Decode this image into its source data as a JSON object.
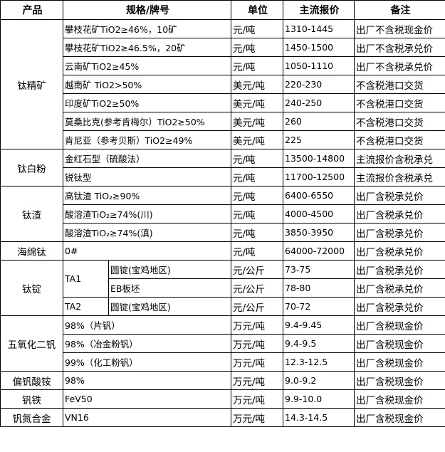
{
  "headers": [
    "产品",
    "规格/牌号",
    "单位",
    "主流报价",
    "备注"
  ],
  "groups": [
    {
      "product": "钛精矿",
      "rows": [
        {
          "spec": "攀枝花矿TiO2≥46%，10矿",
          "unit": "元/吨",
          "price": "1310-1445",
          "note": "出厂不含税现金价"
        },
        {
          "spec": "攀枝花矿TiO2≥46.5%，20矿",
          "unit": "元/吨",
          "price": "1450-1500",
          "note": "出厂不含税承兑价"
        },
        {
          "spec": "云南矿TiO2≥45%",
          "unit": "元/吨",
          "price": "1050-1110",
          "note": "出厂不含税承兑价"
        },
        {
          "spec": "越南矿 TiO2>50%",
          "unit": "美元/吨",
          "price": "220-230",
          "note": "不含税港口交货"
        },
        {
          "spec": "印度矿TiO2≥50%",
          "unit": "美元/吨",
          "price": "240-250",
          "note": "不含税港口交货"
        },
        {
          "spec": "莫桑比克(参考肯梅尔）TiO2≥50%",
          "unit": "美元/吨",
          "price": "260",
          "note": "不含税港口交货"
        },
        {
          "spec": "肯尼亚（参考贝斯）TiO2≥49%",
          "unit": "美元/吨",
          "price": "225",
          "note": "不含税港口交货"
        }
      ]
    },
    {
      "product": "钛白粉",
      "rows": [
        {
          "spec": "金红石型（硫酸法）",
          "unit": "元/吨",
          "price": "13500-14800",
          "note": "主流报价含税承兑"
        },
        {
          "spec": "锐钛型",
          "unit": "元/吨",
          "price": "11700-12500",
          "note": "主流报价含税承兑"
        }
      ]
    },
    {
      "product": "钛渣",
      "rows": [
        {
          "spec": "高钛渣 TiO₂≥90%",
          "unit": "元/吨",
          "price": "6400-6550",
          "note": "出厂含税承兑价"
        },
        {
          "spec": "酸溶渣TiO₂≥74%(川)",
          "unit": "元/吨",
          "price": "4000-4500",
          "note": "出厂含税承兑价"
        },
        {
          "spec": "酸溶渣TiO₂≥74%(滇)",
          "unit": "元/吨",
          "price": "3850-3950",
          "note": "出厂含税承兑价"
        }
      ]
    },
    {
      "product": "海绵钛",
      "rows": [
        {
          "spec": "0#",
          "unit": "元/吨",
          "price": "64000-72000",
          "note": "出厂含税承兑价"
        }
      ]
    },
    {
      "product": "钛锭",
      "rows": [
        {
          "grade": "TA1",
          "grade_span": 2,
          "spec": "圆锭(宝鸡地区)",
          "unit": "元/公斤",
          "price": "73-75",
          "note": "出厂含税承兑价"
        },
        {
          "spec": "EB板坯",
          "unit": "元/公斤",
          "price": "78-80",
          "note": "出厂含税承兑价"
        },
        {
          "grade": "TA2",
          "grade_span": 1,
          "spec": "圆锭(宝鸡地区)",
          "unit": "元/公斤",
          "price": "70-72",
          "note": "出厂含税承兑价"
        }
      ]
    },
    {
      "product": "五氧化二钒",
      "rows": [
        {
          "spec": "98%（片钒）",
          "unit": "万元/吨",
          "price": "9.4-9.45",
          "note": "出厂含税现金价"
        },
        {
          "spec": "98%（冶金粉钒）",
          "unit": "万元/吨",
          "price": "9.4-9.5",
          "note": "出厂含税现金价"
        },
        {
          "spec": "99%（化工粉钒）",
          "unit": "万元/吨",
          "price": "12.3-12.5",
          "note": "出厂含税现金价"
        }
      ]
    },
    {
      "product": "偏钒酸铵",
      "rows": [
        {
          "spec": "98%",
          "unit": "万元/吨",
          "price": "9.0-9.2",
          "note": "出厂含税现金价"
        }
      ]
    },
    {
      "product": "钒铁",
      "rows": [
        {
          "spec": "FeV50",
          "unit": "万元/吨",
          "price": "9.9-10.0",
          "note": "出厂含税现金价"
        }
      ]
    },
    {
      "product": "钒氮合金",
      "rows": [
        {
          "spec": "VN16",
          "unit": "万元/吨",
          "price": "14.3-14.5",
          "note": "出厂含税现金价"
        }
      ]
    }
  ]
}
